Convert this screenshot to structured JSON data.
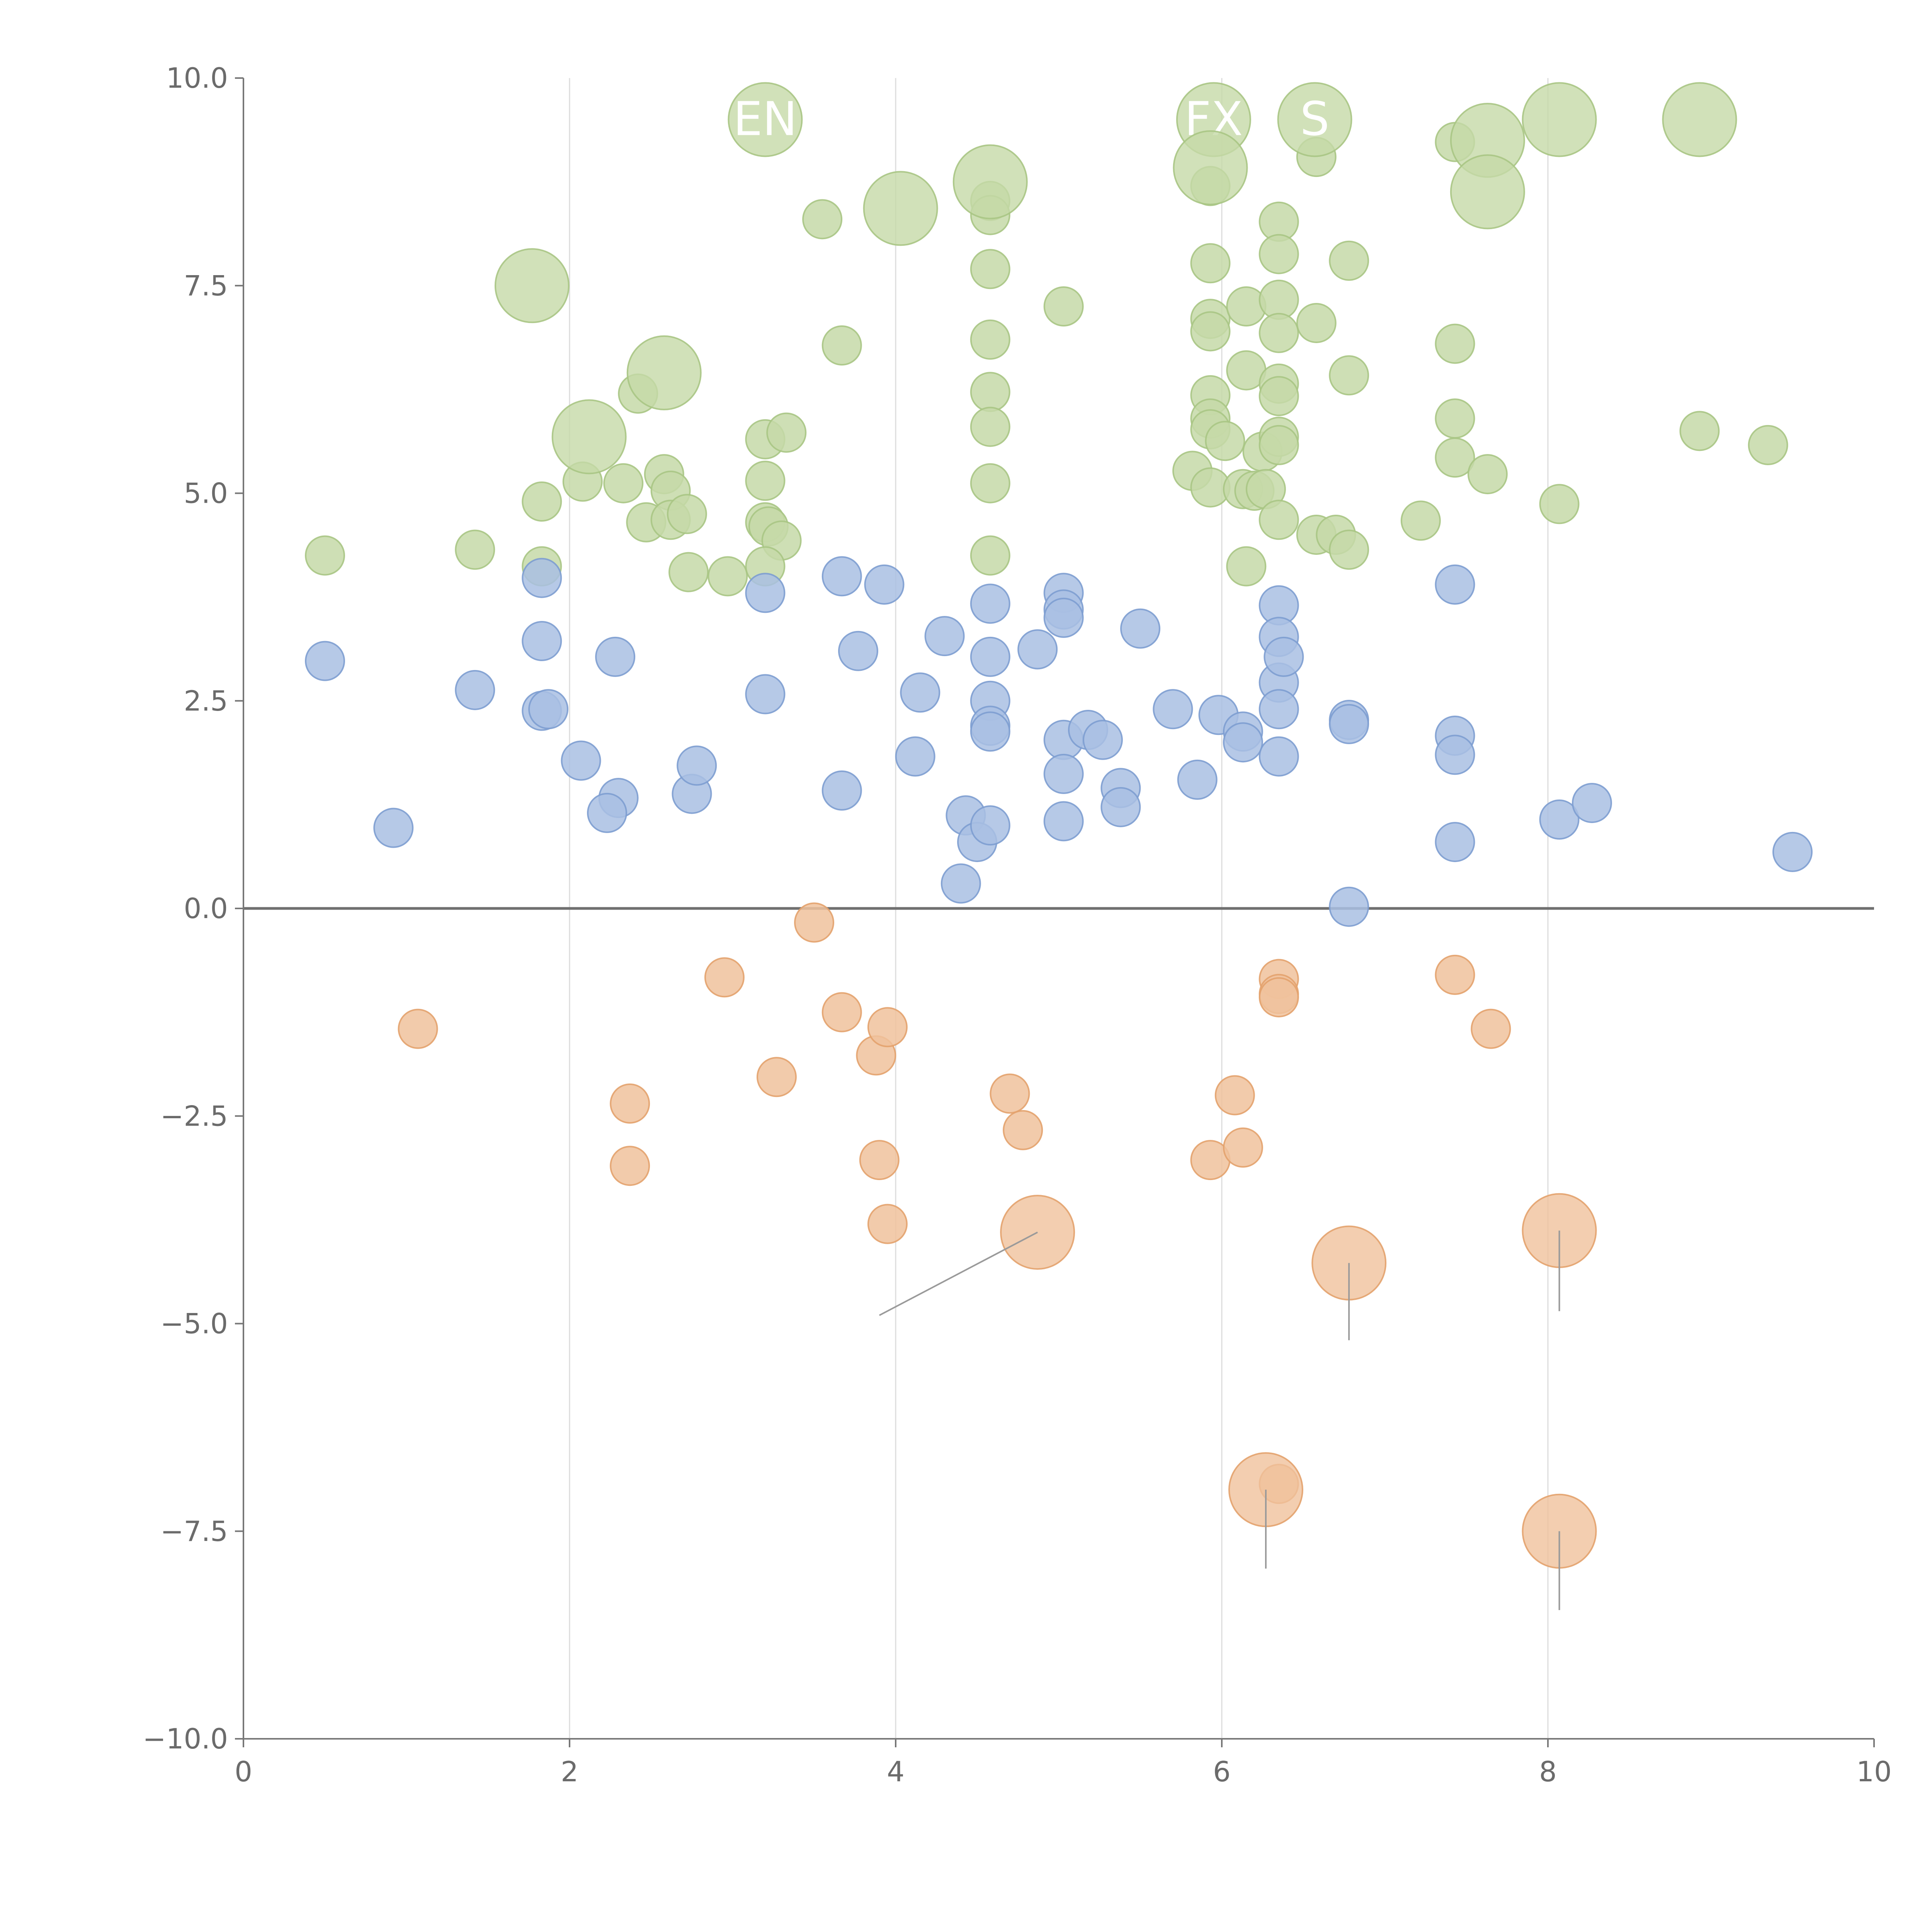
{
  "colors": {
    "green_fill": "#c5d9a8",
    "green_stroke": "#a9c584",
    "blue_fill": "#a9bfe3",
    "blue_stroke": "#7d9dd0",
    "orange_fill": "#f0c29c",
    "orange_stroke": "#e3a26d",
    "axis": "#777777",
    "grid": "#dcdcdc",
    "zero": "#707070"
  },
  "chart_data": {
    "type": "scatter",
    "title": "",
    "xlabel": "",
    "ylabel": "",
    "xlim": [
      0,
      10
    ],
    "ylim": [
      -10,
      10
    ],
    "x_ticks": [
      "0",
      "2",
      "4",
      "6",
      "8",
      "10"
    ],
    "y_ticks": [
      "10.0",
      "7.5",
      "5.0",
      "2.5",
      "0.0",
      "−2.5",
      "−5.0",
      "−7.5",
      "−10.0"
    ],
    "vertical_grid_at": [
      2,
      4,
      6,
      8
    ],
    "zero_line": 0,
    "series": [
      {
        "name": "green",
        "color": "green",
        "points": [
          [
            0.5,
            4.25
          ],
          [
            1.42,
            4.32
          ],
          [
            1.83,
            4.9
          ],
          [
            1.83,
            4.12
          ],
          [
            2.08,
            5.14
          ],
          [
            2.33,
            5.12
          ],
          [
            2.58,
            5.23
          ],
          [
            2.62,
            5.03
          ],
          [
            2.47,
            4.65
          ],
          [
            2.62,
            4.68
          ],
          [
            2.72,
            4.75
          ],
          [
            2.73,
            4.05
          ],
          [
            2.97,
            4.0
          ],
          [
            2.42,
            6.2
          ],
          [
            3.2,
            5.65
          ],
          [
            3.33,
            5.73
          ],
          [
            3.2,
            5.15
          ],
          [
            3.2,
            4.65
          ],
          [
            3.22,
            4.6
          ],
          [
            3.3,
            4.43
          ],
          [
            3.2,
            4.12
          ],
          [
            3.55,
            8.3
          ],
          [
            3.67,
            6.78
          ],
          [
            4.58,
            8.52
          ],
          [
            4.58,
            8.35
          ],
          [
            4.58,
            7.7
          ],
          [
            4.58,
            6.85
          ],
          [
            4.58,
            6.22
          ],
          [
            4.58,
            5.8
          ],
          [
            4.58,
            5.12
          ],
          [
            4.58,
            4.25
          ],
          [
            5.03,
            7.25
          ],
          [
            5.93,
            8.7
          ],
          [
            5.93,
            7.77
          ],
          [
            5.93,
            7.1
          ],
          [
            5.93,
            6.95
          ],
          [
            5.93,
            6.18
          ],
          [
            5.93,
            5.9
          ],
          [
            5.93,
            5.77
          ],
          [
            5.82,
            5.27
          ],
          [
            5.93,
            5.07
          ],
          [
            6.02,
            5.63
          ],
          [
            6.13,
            5.05
          ],
          [
            6.2,
            5.03
          ],
          [
            6.25,
            5.5
          ],
          [
            6.27,
            5.05
          ],
          [
            6.15,
            7.25
          ],
          [
            6.15,
            6.48
          ],
          [
            6.15,
            4.12
          ],
          [
            6.35,
            8.27
          ],
          [
            6.35,
            7.88
          ],
          [
            6.35,
            7.33
          ],
          [
            6.35,
            6.93
          ],
          [
            6.35,
            6.32
          ],
          [
            6.35,
            6.17
          ],
          [
            6.35,
            5.68
          ],
          [
            6.35,
            5.58
          ],
          [
            6.35,
            4.68
          ],
          [
            6.58,
            9.05
          ],
          [
            6.58,
            7.05
          ],
          [
            6.58,
            4.5
          ],
          [
            6.7,
            4.5
          ],
          [
            6.78,
            7.8
          ],
          [
            6.78,
            6.42
          ],
          [
            6.78,
            4.32
          ],
          [
            7.22,
            4.67
          ],
          [
            7.43,
            9.23
          ],
          [
            7.43,
            6.8
          ],
          [
            7.43,
            5.9
          ],
          [
            7.43,
            5.43
          ],
          [
            7.63,
            5.23
          ],
          [
            8.07,
            4.87
          ],
          [
            8.93,
            5.75
          ],
          [
            9.35,
            5.58
          ]
        ]
      },
      {
        "name": "blue",
        "color": "blue",
        "points": [
          [
            0.5,
            2.98
          ],
          [
            0.92,
            0.97
          ],
          [
            1.42,
            2.63
          ],
          [
            1.83,
            3.98
          ],
          [
            1.83,
            3.22
          ],
          [
            1.83,
            2.38
          ],
          [
            1.87,
            2.4
          ],
          [
            2.07,
            1.78
          ],
          [
            2.28,
            3.03
          ],
          [
            2.3,
            1.33
          ],
          [
            2.23,
            1.15
          ],
          [
            2.75,
            1.38
          ],
          [
            2.78,
            1.72
          ],
          [
            3.2,
            3.8
          ],
          [
            3.2,
            2.58
          ],
          [
            3.67,
            4.0
          ],
          [
            3.67,
            1.42
          ],
          [
            3.77,
            3.1
          ],
          [
            3.93,
            3.9
          ],
          [
            4.12,
            1.83
          ],
          [
            4.15,
            2.6
          ],
          [
            4.3,
            3.28
          ],
          [
            4.43,
            1.12
          ],
          [
            4.4,
            0.3
          ],
          [
            4.5,
            0.8
          ],
          [
            4.58,
            3.67
          ],
          [
            4.58,
            3.03
          ],
          [
            4.58,
            2.5
          ],
          [
            4.58,
            2.2
          ],
          [
            4.58,
            2.13
          ],
          [
            4.58,
            1.0
          ],
          [
            4.87,
            3.12
          ],
          [
            5.03,
            3.8
          ],
          [
            5.03,
            3.6
          ],
          [
            5.03,
            3.5
          ],
          [
            5.03,
            2.03
          ],
          [
            5.03,
            1.62
          ],
          [
            5.03,
            1.05
          ],
          [
            5.18,
            2.15
          ],
          [
            5.27,
            2.03
          ],
          [
            5.38,
            1.45
          ],
          [
            5.38,
            1.22
          ],
          [
            5.5,
            3.37
          ],
          [
            5.7,
            2.4
          ],
          [
            5.85,
            1.55
          ],
          [
            5.98,
            2.33
          ],
          [
            6.13,
            2.13
          ],
          [
            6.13,
            2.0
          ],
          [
            6.35,
            3.65
          ],
          [
            6.35,
            3.27
          ],
          [
            6.35,
            2.72
          ],
          [
            6.38,
            3.03
          ],
          [
            6.35,
            2.4
          ],
          [
            6.35,
            1.83
          ],
          [
            6.78,
            2.27
          ],
          [
            6.78,
            2.22
          ],
          [
            6.78,
            0.02
          ],
          [
            7.43,
            3.9
          ],
          [
            7.43,
            2.08
          ],
          [
            7.43,
            1.85
          ],
          [
            7.43,
            0.8
          ],
          [
            8.07,
            1.07
          ],
          [
            8.27,
            1.27
          ],
          [
            9.5,
            0.68
          ]
        ]
      },
      {
        "name": "orange",
        "color": "orange",
        "points": [
          [
            1.07,
            -1.45
          ],
          [
            2.37,
            -2.35
          ],
          [
            2.37,
            -3.1
          ],
          [
            2.95,
            -0.83
          ],
          [
            3.27,
            -2.03
          ],
          [
            3.5,
            -0.17
          ],
          [
            3.67,
            -1.25
          ],
          [
            3.88,
            -1.77
          ],
          [
            3.95,
            -1.43
          ],
          [
            3.9,
            -3.03
          ],
          [
            3.95,
            -3.8
          ],
          [
            4.7,
            -2.23
          ],
          [
            4.78,
            -2.67
          ],
          [
            5.93,
            -3.03
          ],
          [
            6.08,
            -2.25
          ],
          [
            6.13,
            -2.88
          ],
          [
            6.35,
            -0.85
          ],
          [
            6.35,
            -1.03
          ],
          [
            6.35,
            -1.07
          ],
          [
            6.35,
            -6.93
          ],
          [
            7.43,
            -0.8
          ],
          [
            7.65,
            -1.45
          ]
        ]
      }
    ],
    "large_bubbles": [
      {
        "series": "green",
        "x": 1.77,
        "y": 7.5,
        "label": ""
      },
      {
        "series": "green",
        "x": 2.12,
        "y": 5.68,
        "label": ""
      },
      {
        "series": "green",
        "x": 2.58,
        "y": 6.45,
        "label": ""
      },
      {
        "series": "green",
        "x": 3.2,
        "y": 9.5,
        "label": "EN"
      },
      {
        "series": "green",
        "x": 4.03,
        "y": 8.43,
        "label": ""
      },
      {
        "series": "green",
        "x": 4.58,
        "y": 8.75,
        "label": ""
      },
      {
        "series": "green",
        "x": 5.95,
        "y": 9.5,
        "label": "FX"
      },
      {
        "series": "green",
        "x": 5.93,
        "y": 8.92,
        "label": ""
      },
      {
        "series": "green",
        "x": 6.57,
        "y": 9.5,
        "label": "S"
      },
      {
        "series": "green",
        "x": 7.63,
        "y": 9.25,
        "label": ""
      },
      {
        "series": "green",
        "x": 7.63,
        "y": 8.63,
        "label": ""
      },
      {
        "series": "green",
        "x": 8.07,
        "y": 9.5,
        "label": ""
      },
      {
        "series": "green",
        "x": 8.93,
        "y": 9.5,
        "label": ""
      },
      {
        "series": "orange",
        "x": 4.87,
        "y": -3.9,
        "label": ""
      },
      {
        "series": "orange",
        "x": 6.78,
        "y": -4.27,
        "label": ""
      },
      {
        "series": "orange",
        "x": 8.07,
        "y": -3.88,
        "label": ""
      },
      {
        "series": "orange",
        "x": 6.27,
        "y": -7.0,
        "label": ""
      },
      {
        "series": "orange",
        "x": 8.07,
        "y": -7.5,
        "label": ""
      }
    ],
    "leader_lines": [
      {
        "from": [
          4.87,
          -3.9
        ],
        "to": [
          3.9,
          -4.9
        ]
      },
      {
        "from": [
          6.78,
          -4.27
        ],
        "to": [
          6.78,
          -5.2
        ]
      },
      {
        "from": [
          8.07,
          -3.88
        ],
        "to": [
          8.07,
          -4.85
        ]
      },
      {
        "from": [
          6.27,
          -7.0
        ],
        "to": [
          6.27,
          -7.95
        ]
      },
      {
        "from": [
          8.07,
          -7.5
        ],
        "to": [
          8.07,
          -8.45
        ]
      }
    ]
  }
}
